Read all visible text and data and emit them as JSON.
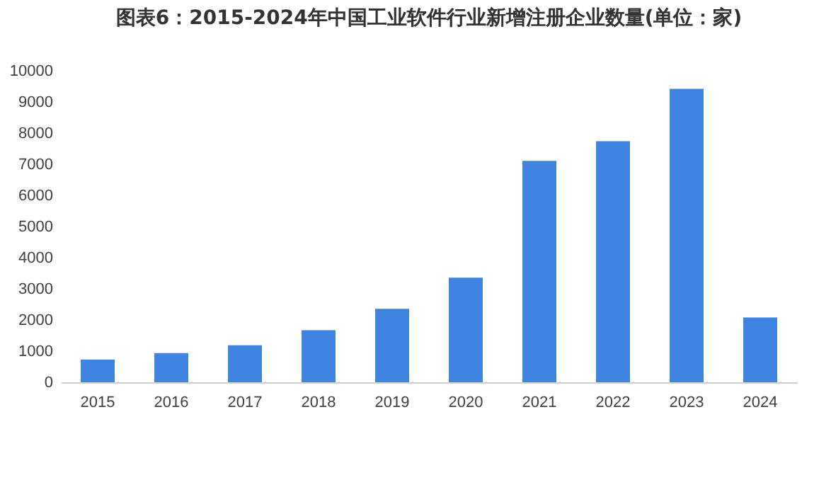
{
  "chart_data": {
    "type": "bar",
    "title": "图表6：2015-2024年中国工业软件行业新增注册企业数量(单位：家)",
    "categories": [
      "2015",
      "2016",
      "2017",
      "2018",
      "2019",
      "2020",
      "2021",
      "2022",
      "2023",
      "2024"
    ],
    "values": [
      730,
      940,
      1190,
      1670,
      2360,
      3360,
      7110,
      7740,
      9420,
      2080
    ],
    "color": "#3f84e0",
    "ylim": [
      0,
      10000
    ],
    "yticks": [
      0,
      1000,
      2000,
      3000,
      4000,
      5000,
      6000,
      7000,
      8000,
      9000,
      10000
    ],
    "grid": false
  }
}
